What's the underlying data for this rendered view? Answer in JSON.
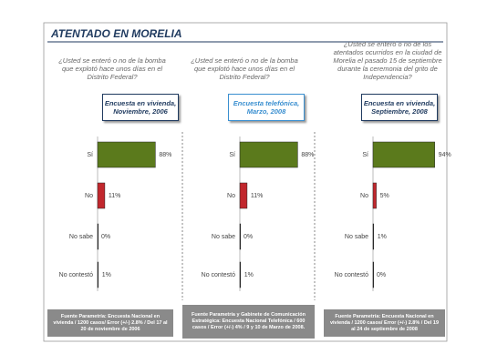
{
  "title": "ATENTADO EN MORELIA",
  "chart_data": [
    {
      "type": "bar",
      "question": "¿Usted se enteró o no de la bomba que explotó hace unos días en el Distrito Federal?",
      "subtitle": "Encuesta en vivienda, Noviembre, 2006",
      "subtitle_color": "#1f3a5f",
      "categories": [
        "Sí",
        "No",
        "No sabe",
        "No contestó"
      ],
      "values": [
        88,
        11,
        0,
        1
      ],
      "value_labels": [
        "88%",
        "11%",
        "0%",
        "1%"
      ],
      "colors": [
        "#5b7a1c",
        "#c1272d",
        "#333333",
        "#333333"
      ],
      "xlim": [
        0,
        100
      ],
      "source": "Fuente Parametría: Encuesta Nacional en vivienda / 1200 casos/ Error (+/-) 2.8% / Del 17 al 20 de noviembre de 2006"
    },
    {
      "type": "bar",
      "question": "¿Usted se enteró o no de la bomba que explotó hace unos días en el Distrito Federal?",
      "subtitle": "Encuesta telefónica, Marzo, 2008",
      "subtitle_color": "#3a8fd0",
      "categories": [
        "Sí",
        "No",
        "No sabe",
        "No contestó"
      ],
      "values": [
        88,
        11,
        0,
        1
      ],
      "value_labels": [
        "88%",
        "11%",
        "0%",
        "1%"
      ],
      "colors": [
        "#5b7a1c",
        "#c1272d",
        "#333333",
        "#333333"
      ],
      "xlim": [
        0,
        100
      ],
      "source": "Fuente Parametría y Gabinete de Comunicación Estratégica: Encuesta Nacional Telefónica / 600 casos / Error (+/-) 4% / 9 y 10 de Marzo de 2008."
    },
    {
      "type": "bar",
      "question": "¿Usted se enteró o no de los atentados ocurridos en la ciudad de Morelia el pasado 15 de septiembre durante la ceremonia del grito de Independencia?",
      "subtitle": "Encuesta en vivienda, Septiembre, 2008",
      "subtitle_color": "#1f3a5f",
      "categories": [
        "Sí",
        "No",
        "No sabe",
        "No contestó"
      ],
      "values": [
        94,
        5,
        1,
        0
      ],
      "value_labels": [
        "94%",
        "5%",
        "1%",
        "0%"
      ],
      "colors": [
        "#5b7a1c",
        "#c1272d",
        "#333333",
        "#333333"
      ],
      "xlim": [
        0,
        100
      ],
      "source": "Fuente Parametría: Encuesta Nacional en vivienda / 1200 casos/ Error (+/-) 2.8% / Del 19 al 24 de septiembre de 2008"
    }
  ]
}
